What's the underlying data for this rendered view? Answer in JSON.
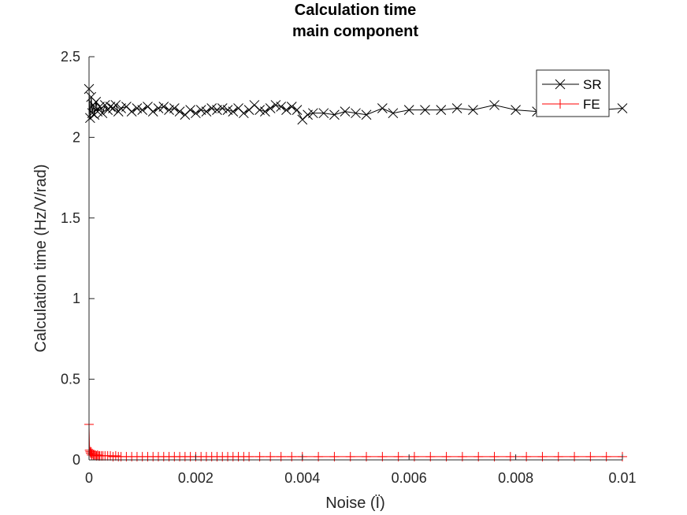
{
  "chart_data": {
    "type": "line",
    "title": [
      "Calculation time",
      "main component"
    ],
    "xlabel": "Noise (Ï)",
    "ylabel": "Calculation time (Hz/V/rad)",
    "xlim": [
      0,
      0.01
    ],
    "ylim": [
      0,
      2.5
    ],
    "xticks": [
      "0",
      "0.002",
      "0.004",
      "0.006",
      "0.008",
      "0.01"
    ],
    "yticks": [
      "0",
      "0.5",
      "1",
      "1.5",
      "2",
      "2.5"
    ],
    "legend_position": "top-right",
    "grid": false,
    "series": [
      {
        "name": "SR",
        "color": "#000000",
        "marker": "x",
        "x": [
          0,
          2e-05,
          4e-05,
          6e-05,
          8e-05,
          0.0001,
          0.00013,
          0.00016,
          0.0002,
          0.00025,
          0.0003,
          0.00035,
          0.0004,
          0.00045,
          0.0005,
          0.00055,
          0.0006,
          0.0007,
          0.0008,
          0.0009,
          0.001,
          0.0011,
          0.0012,
          0.0013,
          0.0014,
          0.0015,
          0.0016,
          0.0017,
          0.0018,
          0.0019,
          0.002,
          0.0021,
          0.0022,
          0.0023,
          0.0024,
          0.0025,
          0.0026,
          0.0027,
          0.0028,
          0.0029,
          0.003,
          0.0031,
          0.0032,
          0.0033,
          0.0034,
          0.0035,
          0.0036,
          0.0037,
          0.0038,
          0.0039,
          0.004,
          0.0041,
          0.0042,
          0.0044,
          0.0046,
          0.0048,
          0.005,
          0.0052,
          0.0055,
          0.0057,
          0.006,
          0.0063,
          0.0066,
          0.0069,
          0.0072,
          0.0076,
          0.008,
          0.0084,
          0.0088,
          0.0092,
          0.0096,
          0.01
        ],
        "y": [
          2.3,
          2.12,
          2.25,
          2.15,
          2.2,
          2.14,
          2.22,
          2.16,
          2.19,
          2.15,
          2.2,
          2.17,
          2.19,
          2.18,
          2.2,
          2.16,
          2.18,
          2.19,
          2.16,
          2.18,
          2.17,
          2.19,
          2.16,
          2.18,
          2.19,
          2.17,
          2.18,
          2.16,
          2.14,
          2.17,
          2.15,
          2.17,
          2.16,
          2.18,
          2.17,
          2.18,
          2.17,
          2.16,
          2.18,
          2.15,
          2.17,
          2.2,
          2.17,
          2.16,
          2.18,
          2.2,
          2.19,
          2.17,
          2.19,
          2.17,
          2.11,
          2.14,
          2.15,
          2.15,
          2.14,
          2.16,
          2.15,
          2.14,
          2.18,
          2.15,
          2.17,
          2.17,
          2.17,
          2.18,
          2.17,
          2.2,
          2.17,
          2.16,
          2.18,
          2.17,
          2.17,
          2.18
        ]
      },
      {
        "name": "FE",
        "color": "#ff0000",
        "marker": "+",
        "x": [
          0,
          1e-05,
          2e-05,
          3e-05,
          4e-05,
          5e-05,
          6e-05,
          8e-05,
          0.0001,
          0.00012,
          0.00014,
          0.00016,
          0.00018,
          0.0002,
          0.00023,
          0.00026,
          0.0003,
          0.00035,
          0.0004,
          0.00045,
          0.0005,
          0.00055,
          0.0006,
          0.0007,
          0.0008,
          0.0009,
          0.001,
          0.0011,
          0.0012,
          0.0013,
          0.0014,
          0.0015,
          0.0016,
          0.0017,
          0.0018,
          0.0019,
          0.002,
          0.0021,
          0.0022,
          0.0023,
          0.0024,
          0.0025,
          0.0026,
          0.0027,
          0.0028,
          0.0029,
          0.003,
          0.0032,
          0.0034,
          0.0036,
          0.0038,
          0.004,
          0.0043,
          0.0046,
          0.0049,
          0.0052,
          0.0055,
          0.0058,
          0.0061,
          0.0064,
          0.0067,
          0.007,
          0.0073,
          0.0076,
          0.0079,
          0.0082,
          0.0085,
          0.0088,
          0.0091,
          0.0094,
          0.0097,
          0.01
        ],
        "y": [
          0.22,
          0.06,
          0.05,
          0.04,
          0.05,
          0.03,
          0.04,
          0.03,
          0.03,
          0.03,
          0.025,
          0.03,
          0.025,
          0.025,
          0.025,
          0.025,
          0.025,
          0.025,
          0.025,
          0.02,
          0.025,
          0.02,
          0.02,
          0.02,
          0.02,
          0.02,
          0.02,
          0.02,
          0.02,
          0.02,
          0.02,
          0.02,
          0.02,
          0.02,
          0.02,
          0.02,
          0.02,
          0.02,
          0.02,
          0.02,
          0.02,
          0.02,
          0.02,
          0.02,
          0.02,
          0.02,
          0.02,
          0.02,
          0.02,
          0.02,
          0.02,
          0.02,
          0.02,
          0.02,
          0.02,
          0.02,
          0.02,
          0.02,
          0.02,
          0.02,
          0.02,
          0.02,
          0.02,
          0.02,
          0.02,
          0.02,
          0.02,
          0.02,
          0.02,
          0.02,
          0.02,
          0.02
        ]
      }
    ]
  }
}
